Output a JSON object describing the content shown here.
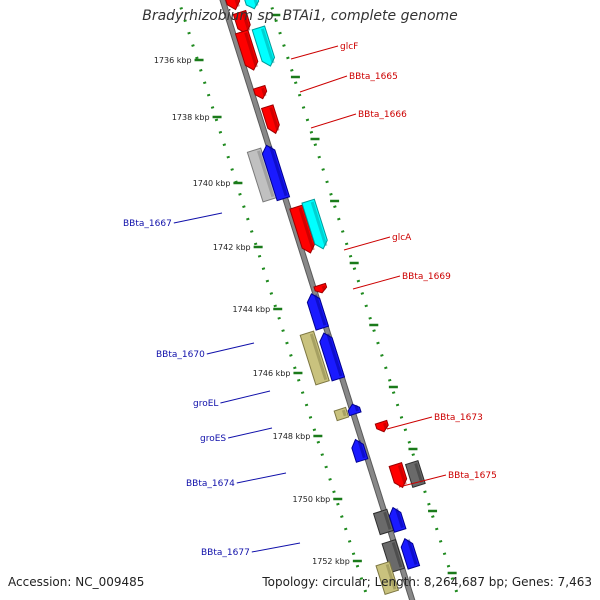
{
  "title": "Bradyrhizobium sp. BTAi1, complete genome",
  "footer": {
    "accession": "Accession: NC_009485",
    "topology": "Topology: circular; Length: 8,264,687 bp; Genes: 7,463"
  },
  "colors": {
    "backbone": "#888888",
    "backbone_edge": "#5a5a5a",
    "tick": "#1a7a1a",
    "dot": "#1f8a1f",
    "left_label": "#1010aa",
    "right_label": "#cc0000"
  },
  "positions": [
    "1736 kbp",
    "1738 kbp",
    "1740 kbp",
    "1742 kbp",
    "1744 kbp",
    "1746 kbp",
    "1748 kbp",
    "1750 kbp",
    "1752 kbp"
  ],
  "genes_left": [
    {
      "name": "BBta_1667"
    },
    {
      "name": "BBta_1670"
    },
    {
      "name": "groEL"
    },
    {
      "name": "groES"
    },
    {
      "name": "BBta_1674"
    },
    {
      "name": "BBta_1677"
    }
  ],
  "genes_right": [
    {
      "name": "glcF"
    },
    {
      "name": "BBta_1665"
    },
    {
      "name": "BBta_1666"
    },
    {
      "name": "glcA"
    },
    {
      "name": "BBta_1669"
    },
    {
      "name": "BBta_1673"
    },
    {
      "name": "BBta_1675"
    }
  ]
}
